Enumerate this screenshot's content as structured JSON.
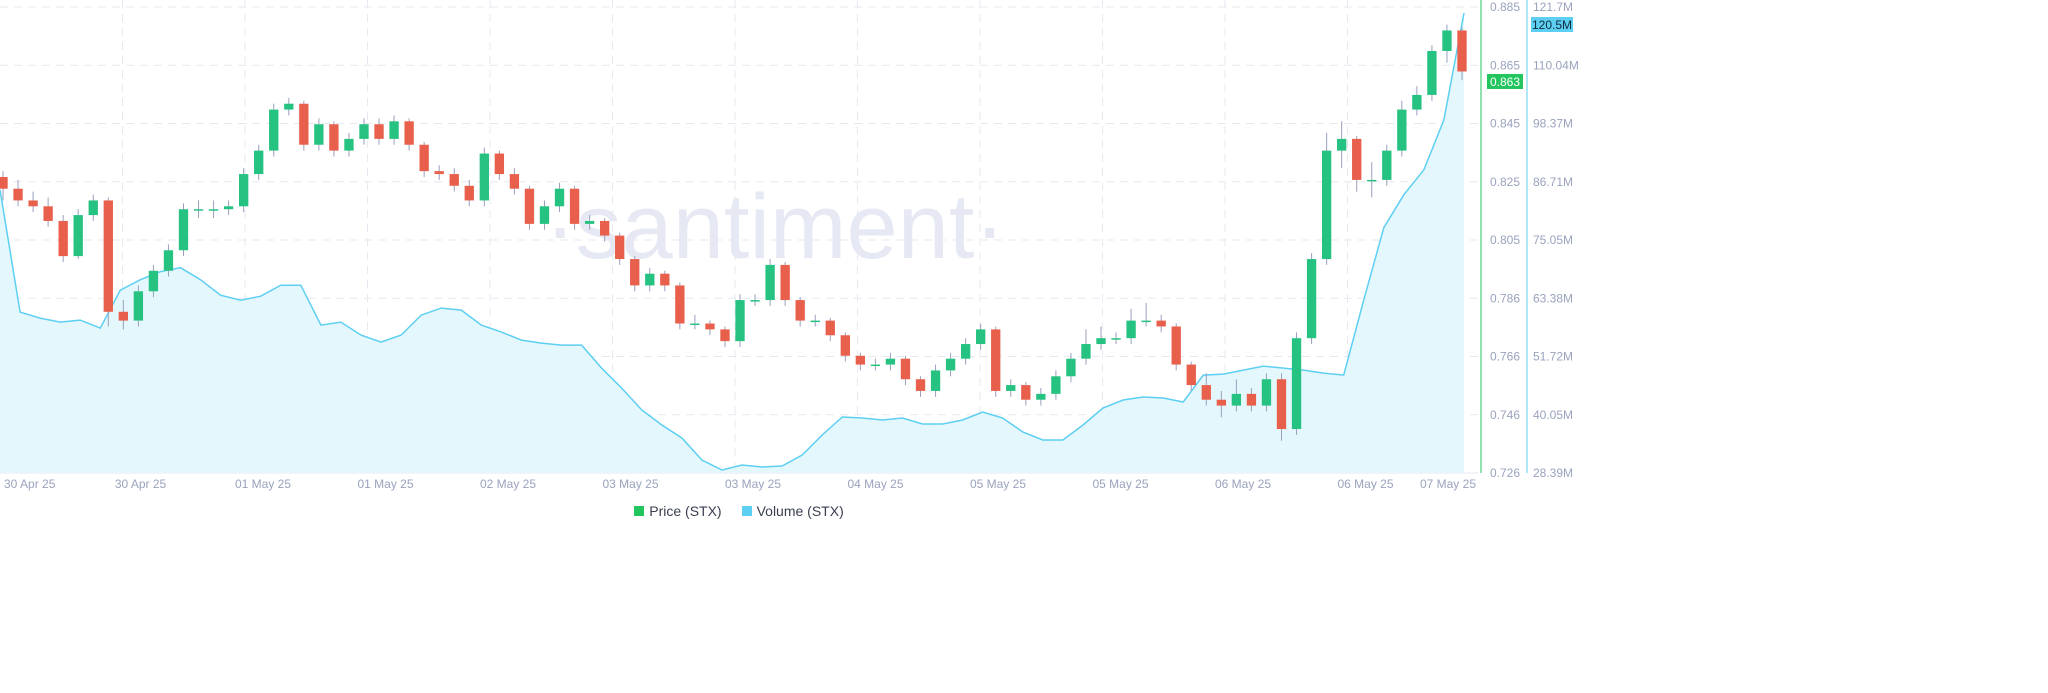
{
  "chart_data": {
    "type": "candlestick+area",
    "watermark": "·santiment·",
    "x_ticks": [
      "30 Apr 25",
      "30 Apr 25",
      "01 May 25",
      "01 May 25",
      "02 May 25",
      "03 May 25",
      "03 May 25",
      "04 May 25",
      "05 May 25",
      "05 May 25",
      "06 May 25",
      "06 May 25",
      "07 May 25"
    ],
    "price_axis": {
      "ticks": [
        "0.885",
        "0.865",
        "0.845",
        "0.825",
        "0.805",
        "0.786",
        "0.766",
        "0.746",
        "0.726"
      ],
      "range": [
        0.726,
        0.885
      ],
      "current": "0.863"
    },
    "volume_axis": {
      "ticks": [
        "121.7M",
        "110.04M",
        "98.37M",
        "86.71M",
        "75.05M",
        "63.38M",
        "51.72M",
        "40.05M",
        "28.39M"
      ],
      "range": [
        28.39,
        121.7
      ],
      "current": "120.5M"
    },
    "grid": true,
    "legend_placement": "bottom",
    "series": [
      {
        "name": "Price (STX)",
        "type": "candlestick",
        "color": "#26c281",
        "down_color": "#e8604c",
        "ohlc": [
          [
            0.827,
            0.829,
            0.819,
            0.823
          ],
          [
            0.823,
            0.826,
            0.817,
            0.819
          ],
          [
            0.819,
            0.822,
            0.815,
            0.817
          ],
          [
            0.817,
            0.82,
            0.81,
            0.812
          ],
          [
            0.812,
            0.814,
            0.798,
            0.8
          ],
          [
            0.8,
            0.816,
            0.799,
            0.814
          ],
          [
            0.814,
            0.821,
            0.812,
            0.819
          ],
          [
            0.819,
            0.82,
            0.776,
            0.781
          ],
          [
            0.781,
            0.785,
            0.775,
            0.778
          ],
          [
            0.778,
            0.79,
            0.776,
            0.788
          ],
          [
            0.788,
            0.797,
            0.786,
            0.795
          ],
          [
            0.795,
            0.804,
            0.793,
            0.802
          ],
          [
            0.802,
            0.818,
            0.8,
            0.816
          ],
          [
            0.816,
            0.819,
            0.813,
            0.816
          ],
          [
            0.816,
            0.819,
            0.813,
            0.816
          ],
          [
            0.816,
            0.819,
            0.814,
            0.817
          ],
          [
            0.817,
            0.83,
            0.815,
            0.828
          ],
          [
            0.828,
            0.838,
            0.826,
            0.836
          ],
          [
            0.836,
            0.852,
            0.834,
            0.85
          ],
          [
            0.85,
            0.854,
            0.848,
            0.852
          ],
          [
            0.852,
            0.853,
            0.836,
            0.838
          ],
          [
            0.838,
            0.847,
            0.836,
            0.845
          ],
          [
            0.845,
            0.846,
            0.834,
            0.836
          ],
          [
            0.836,
            0.842,
            0.834,
            0.84
          ],
          [
            0.84,
            0.847,
            0.838,
            0.845
          ],
          [
            0.845,
            0.847,
            0.838,
            0.84
          ],
          [
            0.84,
            0.848,
            0.838,
            0.846
          ],
          [
            0.846,
            0.847,
            0.836,
            0.838
          ],
          [
            0.838,
            0.839,
            0.827,
            0.829
          ],
          [
            0.829,
            0.831,
            0.826,
            0.828
          ],
          [
            0.828,
            0.83,
            0.822,
            0.824
          ],
          [
            0.824,
            0.826,
            0.817,
            0.819
          ],
          [
            0.819,
            0.837,
            0.817,
            0.835
          ],
          [
            0.835,
            0.836,
            0.826,
            0.828
          ],
          [
            0.828,
            0.83,
            0.821,
            0.823
          ],
          [
            0.823,
            0.824,
            0.809,
            0.811
          ],
          [
            0.811,
            0.819,
            0.809,
            0.817
          ],
          [
            0.817,
            0.825,
            0.815,
            0.823
          ],
          [
            0.823,
            0.824,
            0.809,
            0.811
          ],
          [
            0.811,
            0.814,
            0.809,
            0.812
          ],
          [
            0.812,
            0.813,
            0.805,
            0.807
          ],
          [
            0.807,
            0.808,
            0.797,
            0.799
          ],
          [
            0.799,
            0.8,
            0.788,
            0.79
          ],
          [
            0.79,
            0.796,
            0.788,
            0.794
          ],
          [
            0.794,
            0.795,
            0.788,
            0.79
          ],
          [
            0.79,
            0.791,
            0.775,
            0.777
          ],
          [
            0.777,
            0.78,
            0.775,
            0.777
          ],
          [
            0.777,
            0.778,
            0.773,
            0.775
          ],
          [
            0.775,
            0.776,
            0.769,
            0.771
          ],
          [
            0.771,
            0.787,
            0.769,
            0.785
          ],
          [
            0.785,
            0.787,
            0.783,
            0.785
          ],
          [
            0.785,
            0.799,
            0.783,
            0.797
          ],
          [
            0.797,
            0.798,
            0.783,
            0.785
          ],
          [
            0.785,
            0.786,
            0.776,
            0.778
          ],
          [
            0.778,
            0.78,
            0.776,
            0.778
          ],
          [
            0.778,
            0.779,
            0.771,
            0.773
          ],
          [
            0.773,
            0.774,
            0.764,
            0.766
          ],
          [
            0.766,
            0.767,
            0.761,
            0.763
          ],
          [
            0.763,
            0.765,
            0.761,
            0.763
          ],
          [
            0.763,
            0.767,
            0.761,
            0.765
          ],
          [
            0.765,
            0.766,
            0.756,
            0.758
          ],
          [
            0.758,
            0.759,
            0.752,
            0.754
          ],
          [
            0.754,
            0.763,
            0.752,
            0.761
          ],
          [
            0.761,
            0.767,
            0.759,
            0.765
          ],
          [
            0.765,
            0.772,
            0.763,
            0.77
          ],
          [
            0.77,
            0.777,
            0.768,
            0.775
          ],
          [
            0.775,
            0.776,
            0.752,
            0.754
          ],
          [
            0.754,
            0.758,
            0.752,
            0.756
          ],
          [
            0.756,
            0.757,
            0.749,
            0.751
          ],
          [
            0.751,
            0.755,
            0.749,
            0.753
          ],
          [
            0.753,
            0.761,
            0.751,
            0.759
          ],
          [
            0.759,
            0.767,
            0.757,
            0.765
          ],
          [
            0.765,
            0.775,
            0.763,
            0.77
          ],
          [
            0.77,
            0.776,
            0.768,
            0.772
          ],
          [
            0.772,
            0.774,
            0.77,
            0.772
          ],
          [
            0.772,
            0.782,
            0.77,
            0.778
          ],
          [
            0.778,
            0.784,
            0.776,
            0.778
          ],
          [
            0.778,
            0.78,
            0.774,
            0.776
          ],
          [
            0.776,
            0.777,
            0.761,
            0.763
          ],
          [
            0.763,
            0.764,
            0.754,
            0.756
          ],
          [
            0.756,
            0.76,
            0.749,
            0.751
          ],
          [
            0.751,
            0.754,
            0.745,
            0.749
          ],
          [
            0.749,
            0.758,
            0.747,
            0.753
          ],
          [
            0.753,
            0.755,
            0.747,
            0.749
          ],
          [
            0.749,
            0.76,
            0.747,
            0.758
          ],
          [
            0.758,
            0.76,
            0.737,
            0.741
          ],
          [
            0.741,
            0.774,
            0.739,
            0.772
          ],
          [
            0.772,
            0.801,
            0.77,
            0.799
          ],
          [
            0.799,
            0.842,
            0.797,
            0.836
          ],
          [
            0.836,
            0.846,
            0.83,
            0.84
          ],
          [
            0.84,
            0.841,
            0.822,
            0.826
          ],
          [
            0.826,
            0.832,
            0.82,
            0.826
          ],
          [
            0.826,
            0.838,
            0.824,
            0.836
          ],
          [
            0.836,
            0.853,
            0.834,
            0.85
          ],
          [
            0.85,
            0.858,
            0.848,
            0.855
          ],
          [
            0.855,
            0.872,
            0.853,
            0.87
          ],
          [
            0.87,
            0.879,
            0.866,
            0.877
          ],
          [
            0.877,
            0.878,
            0.86,
            0.863
          ]
        ]
      },
      {
        "name": "Volume (STX)",
        "type": "area",
        "color": "#5ccff2",
        "fill": "#e4f7fd",
        "values": [
          85.1,
          60.6,
          59.4,
          58.6,
          59.0,
          57.4,
          65.0,
          67.1,
          68.7,
          69.5,
          67.1,
          64.0,
          63.0,
          63.8,
          66.0,
          66.0,
          58.0,
          58.6,
          56.0,
          54.6,
          56.0,
          60.0,
          61.4,
          61.0,
          58.0,
          56.6,
          55.0,
          54.4,
          54.0,
          54.0,
          49.4,
          45.4,
          41.0,
          38.0,
          35.4,
          31.0,
          29.0,
          30.0,
          29.6,
          29.8,
          32.0,
          36.0,
          39.6,
          39.4,
          39.0,
          39.4,
          38.2,
          38.2,
          39.0,
          40.6,
          39.4,
          36.6,
          35.0,
          35.0,
          38.0,
          41.4,
          43.0,
          43.6,
          43.4,
          42.6,
          48.0,
          48.2,
          49.0,
          49.8,
          49.4,
          49.0,
          48.4,
          48.0,
          63.0,
          77.5,
          84.1,
          89.1,
          99.1,
          120.5
        ]
      }
    ]
  }
}
